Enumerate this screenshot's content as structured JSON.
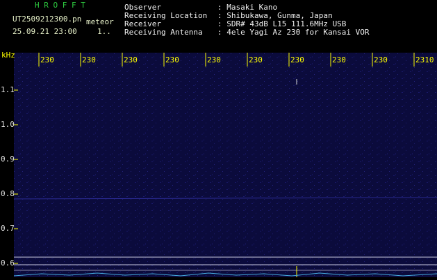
{
  "header": {
    "program": "H R O F F T",
    "file": "UT2509212300.pn",
    "file_suffix": "meteor",
    "date": "25.09.21 23:00",
    "count": "1.."
  },
  "info": [
    {
      "label": "Observer",
      "value": ": Masaki Kano"
    },
    {
      "label": "Receiving Location",
      "value": ": Shibukawa, Gunma, Japan"
    },
    {
      "label": "Receiver",
      "value": ": SDR# 43dB L15 111.6MHz USB"
    },
    {
      "label": "Receiving Antenna",
      "value": ": 4ele Yagi Az 230 for Kansai VOR"
    }
  ],
  "axis": {
    "unit": "kHz",
    "y_ticks": [
      "1.1",
      "1.0",
      "0.9",
      "0.8",
      "0.7",
      "0.6"
    ],
    "x_ticks": [
      "230",
      "230",
      "230",
      "230",
      "230",
      "230",
      "230",
      "230",
      "230",
      "2310"
    ]
  }
}
